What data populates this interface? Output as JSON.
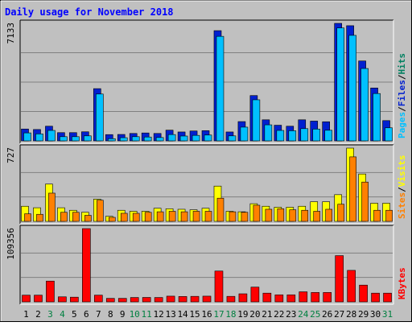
{
  "chart_data": {
    "type": "bar",
    "title": "Daily usage for November 2018",
    "categories": [
      "1",
      "2",
      "3",
      "4",
      "5",
      "6",
      "7",
      "8",
      "9",
      "10",
      "11",
      "12",
      "13",
      "14",
      "15",
      "16",
      "17",
      "18",
      "19",
      "20",
      "21",
      "22",
      "23",
      "24",
      "25",
      "26",
      "27",
      "28",
      "29",
      "30",
      "31"
    ],
    "weekend_days": [
      "3",
      "4",
      "10",
      "11",
      "17",
      "18",
      "24",
      "25",
      "31"
    ],
    "panels": [
      {
        "id": "hits",
        "scale_label": "7133",
        "scale_max": 7133,
        "right_labels": [
          {
            "text": "Pages",
            "color": "#00c0ff"
          },
          {
            "text": "Files",
            "color": "#0020d0"
          },
          {
            "text": "Hits",
            "color": "#008060"
          }
        ],
        "series": [
          {
            "name": "Hits",
            "color": "#0020d0",
            "values": [
              720,
              690,
              890,
              500,
              500,
              550,
              3170,
              380,
              390,
              450,
              480,
              450,
              650,
              540,
              600,
              620,
              6690,
              540,
              1170,
              2750,
              1280,
              950,
              890,
              1280,
              1200,
              1160,
              7133,
              6990,
              4850,
              3210,
              1230
            ]
          },
          {
            "name": "Files",
            "color": "#00c0ff",
            "values": [
              630,
              570,
              780,
              400,
              400,
              450,
              2990,
              280,
              340,
              400,
              380,
              350,
              530,
              440,
              480,
              500,
              6490,
              450,
              980,
              2640,
              1120,
              780,
              760,
              890,
              860,
              790,
              7000,
              6550,
              4540,
              3020,
              940
            ]
          },
          {
            "name": "Pages",
            "color": "#00c0ff",
            "values": [
              630,
              570,
              780,
              400,
              400,
              450,
              2990,
              280,
              340,
              400,
              380,
              350,
              530,
              440,
              480,
              500,
              6490,
              450,
              980,
              2640,
              1120,
              780,
              760,
              890,
              860,
              790,
              7000,
              6550,
              4540,
              3020,
              940
            ]
          }
        ],
        "ylim": [
          0,
          7133
        ]
      },
      {
        "id": "visits",
        "scale_label": "727",
        "scale_max": 727,
        "right_labels": [
          {
            "text": "Sites",
            "color": "#ff8000"
          },
          {
            "text": "Visits",
            "color": "#ffff00"
          }
        ],
        "series": [
          {
            "name": "Visits",
            "color": "#ffff00",
            "values": [
              150,
              135,
              370,
              135,
              110,
              90,
              220,
              50,
              110,
              100,
              100,
              130,
              125,
              120,
              115,
              130,
              350,
              100,
              95,
              175,
              150,
              140,
              140,
              150,
              195,
              195,
              265,
              727,
              470,
              180,
              180
            ]
          },
          {
            "name": "Sites",
            "color": "#ff8000",
            "values": [
              75,
              70,
              280,
              90,
              90,
              60,
              210,
              40,
              80,
              80,
              90,
              95,
              100,
              95,
              100,
              100,
              230,
              95,
              90,
              160,
              120,
              125,
              115,
              110,
              100,
              120,
              170,
              640,
              390,
              110,
              110
            ]
          }
        ],
        "ylim": [
          0,
          727
        ]
      },
      {
        "id": "kbytes",
        "scale_label": "109356",
        "scale_max": 109356,
        "right_labels": [
          {
            "text": "KBytes",
            "color": "#ff0000"
          }
        ],
        "series": [
          {
            "name": "KBytes",
            "color": "#ff0000",
            "values": [
              10000,
              10000,
              31000,
              7500,
              7000,
              109356,
              10000,
              5200,
              5200,
              6500,
              6600,
              6500,
              8500,
              8000,
              8200,
              8500,
              46000,
              8200,
              12000,
              22000,
              13000,
              10500,
              10500,
              15000,
              14000,
              14000,
              69000,
              47000,
              25000,
              13000,
              13000
            ]
          }
        ],
        "ylim": [
          0,
          109356
        ]
      }
    ],
    "colors": {
      "background": "#c0c0c0",
      "border": "#000000",
      "panel_bg": "#c0c0c0",
      "title": "#0000ff",
      "weekday_label": "#000000",
      "weekend_label": "#008040",
      "gridline": "#808080"
    }
  }
}
